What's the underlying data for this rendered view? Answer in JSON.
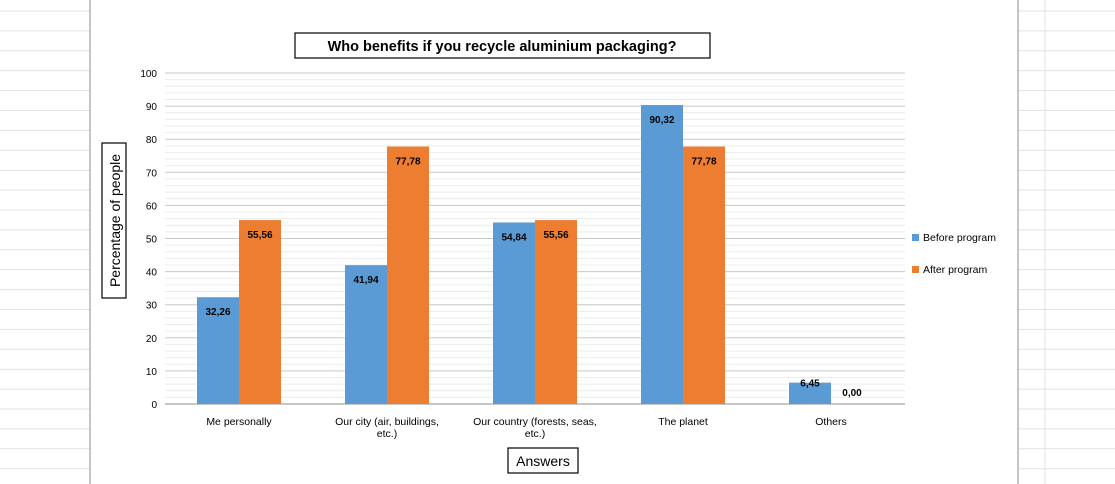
{
  "chart_data": {
    "type": "bar",
    "title": "Who benefits  if you recycle aluminium packaging?",
    "xlabel": "Answers",
    "ylabel": "Percentage of people",
    "categories": [
      [
        "Me personally"
      ],
      [
        "Our city (air, buildings,",
        "etc.)"
      ],
      [
        "Our country (forests, seas,",
        "etc.)"
      ],
      [
        "The planet"
      ],
      [
        "Others"
      ]
    ],
    "series": [
      {
        "name": "Before program",
        "color": "#5B9BD5",
        "values": [
          32.26,
          41.94,
          54.84,
          90.32,
          6.45
        ],
        "labels": [
          "32,26",
          "41,94",
          "54,84",
          "90,32",
          "6,45"
        ]
      },
      {
        "name": "After program",
        "color": "#ED7D31",
        "values": [
          55.56,
          77.78,
          55.56,
          77.78,
          0.0
        ],
        "labels": [
          "55,56",
          "77,78",
          "55,56",
          "77,78",
          "0,00"
        ]
      }
    ],
    "ylim": [
      0,
      100
    ],
    "yticks": [
      0,
      10,
      20,
      30,
      40,
      50,
      60,
      70,
      80,
      90,
      100
    ],
    "grid": true,
    "legend": "right"
  }
}
